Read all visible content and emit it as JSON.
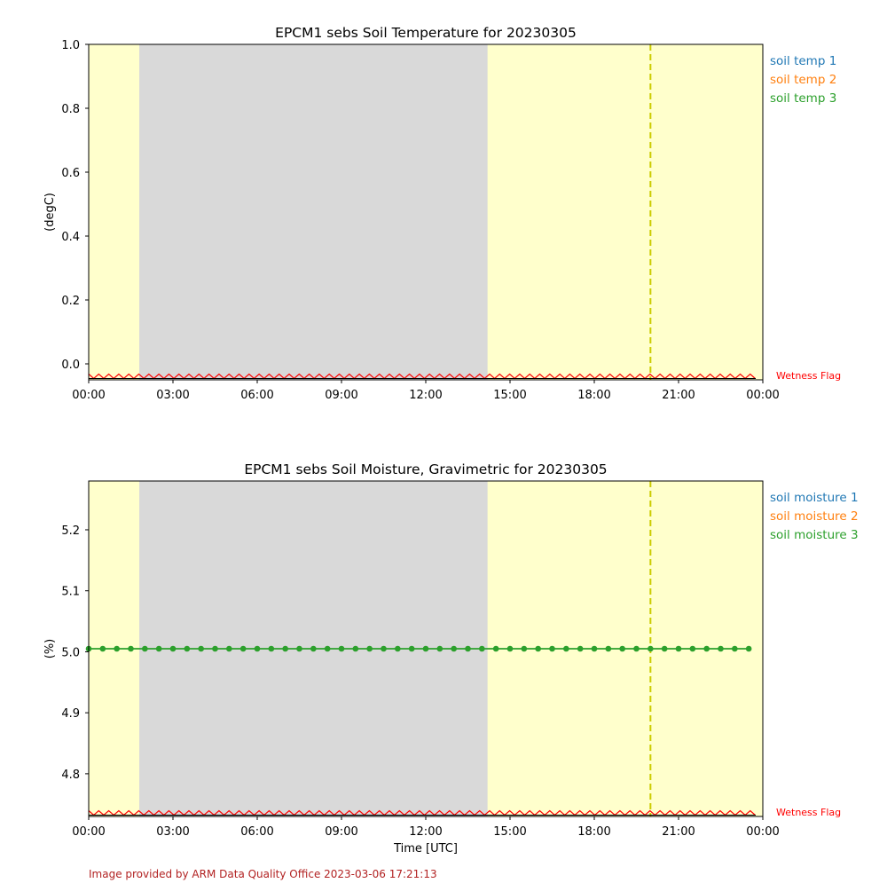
{
  "footer": {
    "text": "Image provided by ARM Data Quality Office 2023-03-06 17:21:13",
    "color": "#b22222"
  },
  "colors": {
    "day_shade": "#ffffcc",
    "night_shade": "#d9d9d9",
    "marker_line": "#cccc00",
    "wetness": "#ff0000",
    "series1": "#1f77b4",
    "series2": "#ff7f0e",
    "series3": "#2ca02c"
  },
  "chart_data": [
    {
      "type": "line",
      "title": "EPCM1 sebs Soil Temperature for 20230305",
      "ylabel": "(degC)",
      "xlabel": "",
      "xlim_hours": [
        0,
        24
      ],
      "ylim": [
        -0.05,
        1.0
      ],
      "x_ticks": [
        "00:00",
        "03:00",
        "06:00",
        "09:00",
        "12:00",
        "15:00",
        "18:00",
        "21:00",
        "00:00"
      ],
      "y_ticks": [
        "0.0",
        "0.2",
        "0.4",
        "0.6",
        "0.8",
        "1.0"
      ],
      "y_tick_values": [
        0.0,
        0.2,
        0.4,
        0.6,
        0.8,
        1.0
      ],
      "legend": [
        "soil temp 1",
        "soil temp 2",
        "soil temp 3"
      ],
      "legend_placement": "outside-right",
      "shaded_night_hours": [
        1.8,
        14.2
      ],
      "vertical_line_hour": 20.0,
      "wetness_flag_label": "Wetness Flag",
      "series": []
    },
    {
      "type": "line",
      "title": "EPCM1 sebs Soil Moisture, Gravimetric for 20230305",
      "ylabel": "(%)",
      "xlabel": "Time [UTC]",
      "xlim_hours": [
        0,
        24
      ],
      "ylim": [
        4.73,
        5.28
      ],
      "x_ticks": [
        "00:00",
        "03:00",
        "06:00",
        "09:00",
        "12:00",
        "15:00",
        "18:00",
        "21:00",
        "00:00"
      ],
      "y_ticks": [
        "4.8",
        "4.9",
        "5.0",
        "5.1",
        "5.2"
      ],
      "y_tick_values": [
        4.8,
        4.9,
        5.0,
        5.1,
        5.2
      ],
      "legend": [
        "soil moisture 1",
        "soil moisture 2",
        "soil moisture 3"
      ],
      "legend_placement": "outside-right",
      "shaded_night_hours": [
        1.8,
        14.2
      ],
      "vertical_line_hour": 20.0,
      "wetness_flag_label": "Wetness Flag",
      "series": [
        {
          "name": "soil moisture 3",
          "interval_hours": 0.5,
          "start_hour": 0,
          "count": 48,
          "value": 5.005
        }
      ]
    }
  ]
}
